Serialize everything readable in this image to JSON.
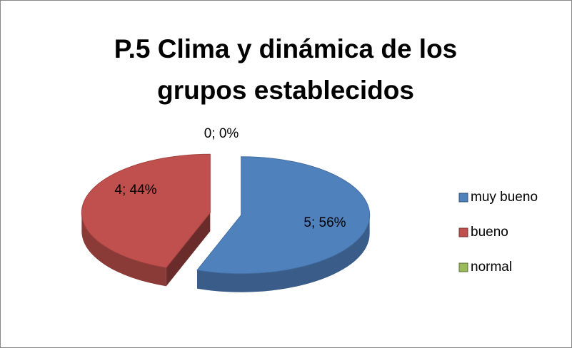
{
  "chart_data": {
    "type": "pie",
    "title": "P.5 Clima y dinámica de los grupos establecidos",
    "categories": [
      "muy bueno",
      "bueno",
      "normal"
    ],
    "values": [
      5,
      4,
      0
    ],
    "value_labels": [
      "5; 56%",
      "4; 44%",
      "0; 0%"
    ],
    "colors": [
      "#4f81bd",
      "#c0504d",
      "#9bbb59"
    ],
    "legend": "right"
  }
}
